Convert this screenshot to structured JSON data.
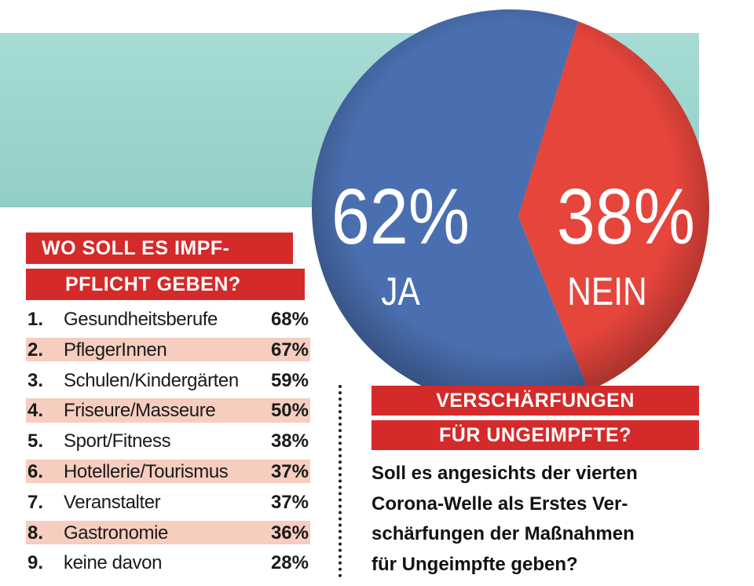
{
  "colors": {
    "teal": "#a8dbd4",
    "red_bar": "#d42a2a",
    "shade": "#f6cdbf",
    "pie_ja": "#4a6fb0",
    "pie_nein": "#e6453c"
  },
  "ranking": {
    "title_line1": "WO SOLL ES IMPF-",
    "title_line2": "PFLICHT GEBEN?",
    "items": [
      {
        "num": "1.",
        "label": "Gesundheitsberufe",
        "pct": "68%"
      },
      {
        "num": "2.",
        "label": "PflegerInnen",
        "pct": "67%"
      },
      {
        "num": "3.",
        "label": "Schulen/Kindergärten",
        "pct": "59%"
      },
      {
        "num": "4.",
        "label": "Friseure/Masseure",
        "pct": "50%"
      },
      {
        "num": "5.",
        "label": "Sport/Fitness",
        "pct": "38%"
      },
      {
        "num": "6.",
        "label": "Hotellerie/Tourismus",
        "pct": "37%"
      },
      {
        "num": "7.",
        "label": "Veranstalter",
        "pct": "37%"
      },
      {
        "num": "8.",
        "label": "Gastronomie",
        "pct": "36%"
      },
      {
        "num": "9.",
        "label": "keine davon",
        "pct": "28%"
      }
    ]
  },
  "poll": {
    "title_line1": "VERSCHÄRFUNGEN",
    "title_line2": "FÜR UNGEIMPFTE?",
    "question_lines": [
      "Soll es angesichts der vierten",
      "Corona-Welle als Erstes Ver-",
      "schärfungen der Maßnahmen",
      "für Ungeimpfte geben?"
    ]
  },
  "chart_data": [
    {
      "type": "pie",
      "title": "VERSCHÄRFUNGEN FÜR UNGEIMPFTE?",
      "slices": [
        {
          "label": "JA",
          "value": 62,
          "display": "62%"
        },
        {
          "label": "NEIN",
          "value": 38,
          "display": "38%"
        }
      ]
    },
    {
      "type": "bar",
      "title": "WO SOLL ES IMPFPFLICHT GEBEN?",
      "categories": [
        "Gesundheitsberufe",
        "PflegerInnen",
        "Schulen/Kindergärten",
        "Friseure/Masseure",
        "Sport/Fitness",
        "Hotellerie/Tourismus",
        "Veranstalter",
        "Gastronomie",
        "keine davon"
      ],
      "values": [
        68,
        67,
        59,
        50,
        38,
        37,
        37,
        36,
        28
      ],
      "unit": "%"
    }
  ]
}
